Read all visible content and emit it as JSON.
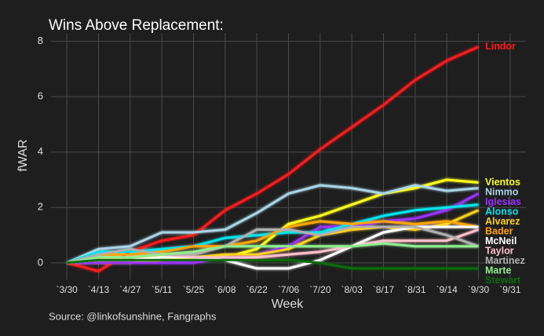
{
  "chart_data": {
    "type": "line",
    "title": "Wins Above Replacement:",
    "x_label": "Week",
    "y_label": "fWAR",
    "source": "Source: @linkofsunshine, Fangraphs",
    "categories": [
      "`3/30",
      "`4/13",
      "`4/27",
      "`5/11",
      "`5/25",
      "`6/08",
      "`6/22",
      "`7/06",
      "`7/20",
      "`8/03",
      "`8/17",
      "`8/31",
      "`9/14",
      "`9/30",
      "`9/31"
    ],
    "ylim": [
      -0.6,
      8.3
    ],
    "yticks": [
      0,
      2,
      4,
      6,
      8
    ],
    "grid": true,
    "series": [
      {
        "name": "Lindor",
        "color": "#ff1a1a",
        "values": [
          0,
          -0.3,
          0.4,
          0.8,
          1.0,
          1.9,
          2.5,
          3.2,
          4.1,
          4.9,
          5.7,
          6.6,
          7.3,
          7.8,
          null
        ]
      },
      {
        "name": "Vientos",
        "color": "#ffff1a",
        "values": [
          0,
          0,
          0,
          0.1,
          0.15,
          0.2,
          0.5,
          1.4,
          1.7,
          2.1,
          2.5,
          2.7,
          3.0,
          2.9,
          null
        ]
      },
      {
        "name": "Nimmo",
        "color": "#a8d4e6",
        "values": [
          0,
          0.5,
          0.6,
          1.1,
          1.1,
          1.2,
          1.8,
          2.5,
          2.8,
          2.7,
          2.5,
          2.8,
          2.6,
          2.7,
          null
        ]
      },
      {
        "name": "Iglesias",
        "color": "#9b30ff",
        "values": [
          0,
          0,
          0,
          0,
          0,
          0.2,
          0.3,
          0.6,
          1.3,
          1.3,
          1.5,
          1.6,
          1.9,
          2.5,
          null
        ]
      },
      {
        "name": "Alonso",
        "color": "#00e5ee",
        "values": [
          0,
          0.4,
          0.4,
          0.5,
          0.6,
          0.9,
          1.0,
          1.1,
          1.1,
          1.4,
          1.7,
          1.9,
          2.0,
          2.1,
          null
        ]
      },
      {
        "name": "Alvarez",
        "color": "#ffd21a",
        "values": [
          0,
          0.1,
          0.2,
          0.2,
          0.2,
          0.3,
          0.3,
          0.5,
          1.0,
          1.2,
          1.3,
          1.2,
          1.4,
          1.9,
          null
        ]
      },
      {
        "name": "Bader",
        "color": "#ffa500",
        "values": [
          0,
          0.3,
          0.3,
          0.4,
          0.6,
          0.6,
          0.8,
          1.3,
          1.5,
          1.4,
          1.5,
          1.4,
          1.5,
          1.3,
          null
        ]
      },
      {
        "name": "McNeil",
        "color": "#ffffff",
        "values": [
          0,
          0.1,
          0.1,
          0.2,
          0.2,
          0.1,
          -0.2,
          -0.2,
          0.1,
          0.6,
          1.1,
          1.3,
          1.3,
          1.3,
          null
        ]
      },
      {
        "name": "Taylor",
        "color": "#ffc0cb",
        "values": [
          0,
          0.2,
          0.2,
          0.3,
          0.2,
          0.2,
          0.2,
          0.3,
          0.4,
          0.6,
          0.8,
          0.8,
          0.8,
          1.2,
          null
        ]
      },
      {
        "name": "Martinez",
        "color": "#b0b0b0",
        "values": [
          0,
          0.3,
          0.5,
          0.3,
          0.3,
          0.6,
          1.2,
          1.2,
          1.0,
          1.3,
          1.3,
          1.3,
          1.0,
          0.6,
          null
        ]
      },
      {
        "name": "Marte",
        "color": "#90ee90",
        "values": [
          0,
          0.2,
          0.2,
          0.3,
          0.4,
          0.6,
          0.6,
          0.6,
          0.6,
          0.6,
          0.7,
          0.6,
          0.6,
          0.6,
          null
        ]
      },
      {
        "name": "Stewart",
        "color": "#0b6b0b",
        "values": [
          0,
          0.1,
          0.1,
          0.1,
          0.1,
          0.1,
          0.1,
          0.1,
          0,
          -0.2,
          -0.2,
          -0.2,
          -0.2,
          -0.2,
          null
        ]
      }
    ]
  }
}
